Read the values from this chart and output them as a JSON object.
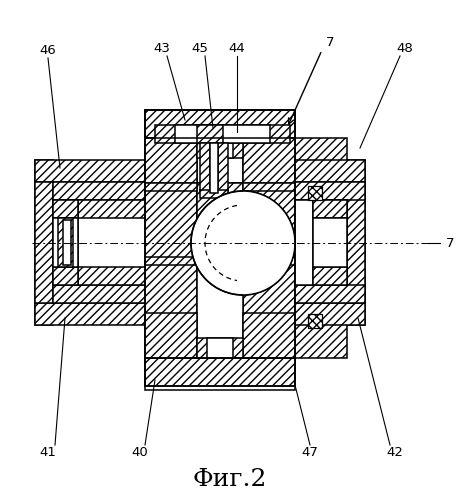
{
  "title": "Фиг.2",
  "bg_color": "#ffffff",
  "hatch": "////",
  "hatch_dense": "xxxx",
  "lw": 1.1,
  "lw_thin": 0.7,
  "label_fs": 9.5
}
